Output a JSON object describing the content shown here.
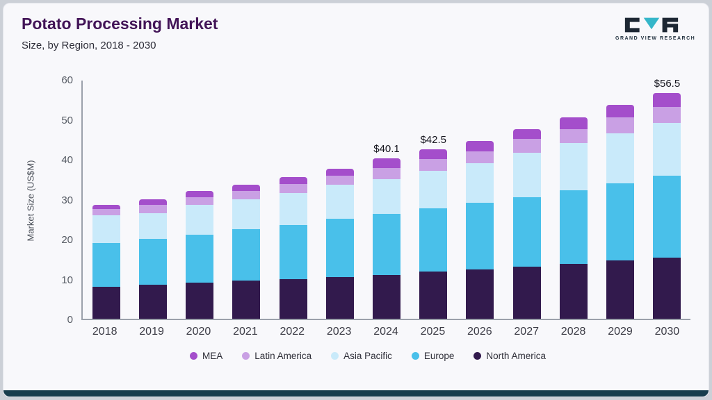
{
  "header": {
    "title": "Potato Processing Market",
    "subtitle": "Size, by Region, 2018 - 2030"
  },
  "logo": {
    "text": "GRAND VIEW RESEARCH",
    "dark_color": "#1d2733",
    "teal_color": "#35b6c9"
  },
  "chart_data": {
    "type": "bar",
    "stacked": true,
    "title": "Potato Processing Market Size, by Region, 2018 - 2030",
    "ylabel": "Market Size (US$M)",
    "xlabel": "",
    "ylim": [
      0,
      60
    ],
    "yticks": [
      0,
      10,
      20,
      30,
      40,
      50,
      60
    ],
    "grid": false,
    "legend_position": "bottom",
    "categories": [
      "2018",
      "2019",
      "2020",
      "2021",
      "2022",
      "2023",
      "2024",
      "2025",
      "2026",
      "2027",
      "2028",
      "2029",
      "2030"
    ],
    "series": [
      {
        "name": "North America",
        "color": "#321a4d",
        "values": [
          8.0,
          8.5,
          9.0,
          9.5,
          10.0,
          10.5,
          11.0,
          11.8,
          12.4,
          13.0,
          13.8,
          14.6,
          15.3
        ]
      },
      {
        "name": "Europe",
        "color": "#49c0ea",
        "values": [
          11.0,
          11.5,
          12.0,
          13.0,
          13.5,
          14.5,
          15.2,
          15.8,
          16.6,
          17.5,
          18.4,
          19.4,
          20.5
        ]
      },
      {
        "name": "Asia Pacific",
        "color": "#c9eafa",
        "values": [
          7.0,
          6.5,
          7.5,
          7.5,
          8.0,
          8.5,
          8.8,
          9.4,
          10.0,
          11.0,
          11.8,
          12.5,
          13.2
        ]
      },
      {
        "name": "Latin America",
        "color": "#c9a0e4",
        "values": [
          1.5,
          2.0,
          2.0,
          2.0,
          2.3,
          2.3,
          2.8,
          3.0,
          3.0,
          3.5,
          3.5,
          4.0,
          4.0
        ]
      },
      {
        "name": "MEA",
        "color": "#a44ecb",
        "values": [
          1.0,
          1.5,
          1.5,
          1.5,
          1.7,
          1.7,
          2.3,
          2.5,
          2.5,
          2.5,
          3.0,
          3.0,
          3.5
        ]
      }
    ],
    "totals": [
      28.5,
      30.0,
      32.0,
      33.5,
      35.5,
      37.5,
      40.1,
      42.5,
      44.5,
      47.5,
      50.5,
      53.5,
      56.5
    ],
    "annotations": [
      {
        "category": "2024",
        "text": "$40.1"
      },
      {
        "category": "2025",
        "text": "$42.5"
      },
      {
        "category": "2030",
        "text": "$56.5"
      }
    ],
    "legend": [
      "MEA",
      "Latin America",
      "Asia Pacific",
      "Europe",
      "North America"
    ]
  }
}
